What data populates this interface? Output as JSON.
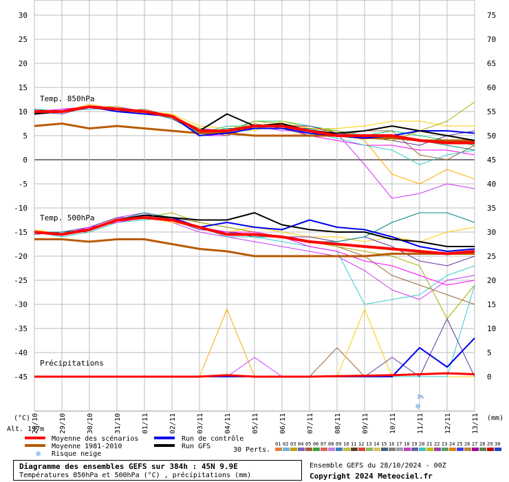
{
  "chart_data": {
    "type": "line",
    "title": "Diagramme des ensembles GEFS sur 384h : 45N 9.9E",
    "subtitle": "Températures 850hPa et 500hPa (°C) , précipitations (mm)",
    "left_axis_unit": "(°C)",
    "right_axis_unit": "(mm)",
    "altitude_label": "Alt. 197m",
    "yticks_left": [
      30,
      25,
      20,
      15,
      10,
      5,
      0,
      -5,
      -10,
      -15,
      -20,
      -25,
      -30,
      -35,
      -40,
      -45
    ],
    "yticks_right": [
      75,
      70,
      65,
      60,
      55,
      50,
      45,
      40,
      35,
      30,
      25,
      20,
      15,
      10,
      5,
      0
    ],
    "x_tick_labels": [
      "28/10",
      "29/10",
      "30/10",
      "31/10",
      "01/11",
      "02/11",
      "03/11",
      "04/11",
      "05/11",
      "06/11",
      "07/11",
      "08/11",
      "09/11",
      "10/11",
      "11/11",
      "12/11",
      "13/11"
    ],
    "panel_labels": {
      "t850": "Temp. 850hPa",
      "t500": "Temp. 500hPa",
      "precip": "Précipitations"
    },
    "x_hours": [
      0,
      24,
      48,
      72,
      96,
      120,
      144,
      168,
      192,
      216,
      240,
      264,
      288,
      312,
      336,
      360,
      384
    ],
    "t850": {
      "mean": [
        10,
        10,
        11,
        10.5,
        10,
        9,
        6,
        6,
        7,
        7,
        6,
        5,
        5,
        5,
        4,
        3.5,
        3.5
      ],
      "climo": [
        7,
        7.5,
        6.5,
        7,
        6.5,
        6,
        5.5,
        5.5,
        5,
        5,
        5,
        5,
        4.5,
        4.5,
        4,
        4,
        4
      ],
      "control": [
        9.5,
        10,
        11,
        10,
        9.5,
        9,
        5,
        5.5,
        6.5,
        6.5,
        5.5,
        5,
        4.5,
        5,
        6,
        6,
        5.5
      ],
      "gfs": [
        9.5,
        10,
        11,
        10.5,
        10,
        9,
        6,
        9.5,
        7,
        7.5,
        6,
        5.5,
        6,
        7,
        6,
        5,
        4
      ],
      "members": [
        [
          10,
          10.5,
          11,
          10,
          10,
          9,
          5,
          5,
          7,
          7,
          5,
          4,
          3,
          3,
          2,
          2,
          1
        ],
        [
          9.5,
          10,
          11,
          11,
          10,
          9,
          6,
          6,
          8,
          8,
          7,
          6,
          5,
          6,
          5,
          4,
          3
        ],
        [
          10,
          10,
          11.5,
          10.5,
          9.5,
          9.5,
          5.5,
          7,
          6.5,
          7.5,
          6.5,
          6,
          4,
          -3,
          -5,
          -2,
          -4
        ],
        [
          10,
          10.5,
          10.5,
          11,
          10,
          8.5,
          6.5,
          6,
          7,
          6,
          6,
          5.5,
          -1,
          -8,
          -7,
          -5,
          -6
        ],
        [
          10.5,
          10,
          11,
          10,
          10.5,
          9,
          6,
          5,
          7.5,
          6.5,
          5,
          5,
          6,
          6,
          1,
          0,
          3
        ],
        [
          9.5,
          10,
          11,
          10.5,
          10,
          9.5,
          7,
          6.5,
          6,
          8,
          6.5,
          6.5,
          7,
          8,
          8,
          7,
          7
        ],
        [
          10,
          10,
          10.5,
          10.5,
          10,
          9,
          5.5,
          7,
          7,
          7,
          5.5,
          4.5,
          3,
          2,
          -1,
          1,
          2
        ],
        [
          10,
          9.5,
          11,
          10,
          10,
          9,
          6,
          6,
          7,
          7,
          7,
          5.5,
          5,
          4,
          3,
          5,
          6
        ],
        [
          10,
          10,
          11,
          11,
          9.5,
          9,
          6.5,
          5.5,
          8,
          7.5,
          6,
          6,
          4.5,
          4,
          6,
          8,
          12
        ],
        [
          10.5,
          10,
          11,
          10.5,
          10,
          8.5,
          5.5,
          6.5,
          6.5,
          6.5,
          6.5,
          5,
          5,
          5,
          4,
          3,
          2
        ]
      ]
    },
    "t500": {
      "mean": [
        -15,
        -15.5,
        -14.5,
        -12.5,
        -12,
        -12.5,
        -14,
        -15.5,
        -15.5,
        -16,
        -17,
        -17.5,
        -18,
        -18.5,
        -19,
        -19.5,
        -19
      ],
      "climo": [
        -16.5,
        -16.5,
        -17,
        -16.5,
        -16.5,
        -17.5,
        -18.5,
        -19,
        -20,
        -20,
        -20,
        -20,
        -20,
        -19.5,
        -19.5,
        -19.5,
        -19.5
      ],
      "control": [
        -15,
        -15.5,
        -14.5,
        -12.5,
        -11.5,
        -12,
        -14,
        -13,
        -14,
        -14.5,
        -12.5,
        -14,
        -14.5,
        -16,
        -18,
        -19,
        -18.5
      ],
      "gfs": [
        -15,
        -15.5,
        -14.5,
        -12.5,
        -11.5,
        -12,
        -12.5,
        -12.5,
        -11,
        -13.5,
        -14.5,
        -15,
        -15,
        -16.5,
        -17,
        -18,
        -18
      ],
      "members": [
        [
          -15,
          -15.5,
          -14,
          -12,
          -11,
          -13,
          -15,
          -16,
          -17,
          -18,
          -19,
          -20,
          -23,
          -27,
          -29,
          -25,
          -24
        ],
        [
          -15,
          -15,
          -15,
          -13,
          -12,
          -12,
          -13,
          -14,
          -15,
          -16,
          -17,
          -18,
          -20,
          -24,
          -26,
          -28,
          -30
        ],
        [
          -14.5,
          -15.5,
          -14.5,
          -12.5,
          -12,
          -13,
          -14,
          -15,
          -14,
          -15,
          -16,
          -16,
          -17,
          -16,
          -17,
          -15,
          -14
        ],
        [
          -15,
          -16,
          -15,
          -13,
          -12.5,
          -12,
          -14,
          -16,
          -16,
          -17,
          -18,
          -19,
          -30,
          -29,
          -28,
          -24,
          -22
        ],
        [
          -15.5,
          -15,
          -14,
          -12,
          -12,
          -12.5,
          -14.5,
          -15,
          -15.5,
          -16,
          -16,
          -17,
          -16,
          -18,
          -21,
          -22,
          -20
        ],
        [
          -15,
          -15.5,
          -14.5,
          -12.5,
          -12,
          -11,
          -13,
          -14,
          -15,
          -16,
          -17,
          -18,
          -19,
          -20,
          -22,
          -33,
          -26
        ],
        [
          -15,
          -15,
          -14.5,
          -12.5,
          -11,
          -12,
          -14,
          -15,
          -16,
          -16,
          -17,
          -17,
          -16,
          -13,
          -11,
          -11,
          -13
        ],
        [
          -15,
          -15.5,
          -14,
          -13,
          -12,
          -12.5,
          -14,
          -15,
          -15,
          -16,
          -18,
          -19,
          -21,
          -22,
          -24,
          -26,
          -25
        ]
      ]
    },
    "precip": {
      "mean": [
        0,
        0,
        0,
        0,
        0,
        0,
        0,
        0.3,
        0,
        0,
        0,
        0.1,
        0.2,
        0.3,
        0.5,
        0.7,
        0.5
      ],
      "control": [
        0,
        0,
        0,
        0,
        0,
        0,
        0,
        0,
        0,
        0,
        0,
        0,
        0,
        0,
        6,
        2,
        8
      ],
      "members": [
        [
          0,
          0,
          0,
          0,
          0,
          0,
          0,
          14,
          0,
          0,
          0,
          0,
          0,
          0,
          0,
          0,
          0
        ],
        [
          0,
          0,
          0,
          0,
          0,
          0,
          0,
          0,
          4,
          0,
          0,
          0,
          0,
          0,
          0,
          0,
          0
        ],
        [
          0,
          0,
          0,
          0,
          0,
          0,
          0,
          0,
          0,
          0,
          0,
          6,
          0,
          0,
          0,
          0,
          0
        ],
        [
          0,
          0,
          0,
          0,
          0,
          0,
          0,
          0,
          0,
          0,
          0,
          0,
          14,
          0,
          0,
          0,
          0
        ],
        [
          0,
          0,
          0,
          0,
          0,
          0,
          0,
          0,
          0,
          0,
          0,
          0,
          0,
          0,
          0,
          0,
          19
        ],
        [
          0,
          0,
          0,
          0,
          0,
          0,
          0,
          0,
          0,
          0,
          0,
          0,
          0,
          4,
          0,
          12,
          0
        ]
      ]
    },
    "snow_risk_label": "3%",
    "snow_risk_hour": 336,
    "ylim_left": [
      -45,
      30
    ],
    "ylim_right": [
      0,
      75
    ],
    "grid": true,
    "colors": {
      "mean": "#ff0000",
      "climo": "#b85a00",
      "control": "#0000ee",
      "gfs": "#000000",
      "snow": "#5aa0e0",
      "members": [
        "#ff00ff",
        "#00cc66",
        "#ffaa00",
        "#cc33ff",
        "#996633",
        "#ffcc00",
        "#33cccc",
        "#663399",
        "#aaaa00",
        "#008888"
      ]
    }
  },
  "legend": {
    "mean": "Moyenne des scénarios",
    "climo": "Moyenne 1981-2010",
    "control": "Run de contrôle",
    "gfs": "Run GFS",
    "snow": "Risque neige",
    "perts_label": "30 Perts.",
    "pert_numbers": [
      "01",
      "02",
      "03",
      "04",
      "05",
      "06",
      "07",
      "08",
      "09",
      "10",
      "11",
      "12",
      "13",
      "14",
      "15",
      "16",
      "17",
      "18",
      "19",
      "20",
      "21",
      "22",
      "23",
      "24",
      "25",
      "26",
      "27",
      "28",
      "29",
      "30"
    ],
    "pert_colors": [
      "#e08040",
      "#70b0e0",
      "#c0a000",
      "#8060c0",
      "#a06030",
      "#40a040",
      "#e06060",
      "#c080e0",
      "#4080c0",
      "#c0c040",
      "#604020",
      "#e04040",
      "#80c060",
      "#e0c060",
      "#406080",
      "#808080",
      "#a0a0a0",
      "#c040c0",
      "#6060a0",
      "#40c0c0",
      "#c0c000",
      "#a040a0",
      "#60a060",
      "#e08000",
      "#4040e0",
      "#c08040",
      "#a000a0",
      "#608040",
      "#c00000",
      "#2040c0"
    ]
  },
  "footer": {
    "title": "Diagramme des ensembles GEFS sur 384h : 45N 9.9E",
    "subtitle": "Températures 850hPa et 500hPa (°C) , précipitations (mm)",
    "run_info": "Ensemble GEFS du 28/10/2024 - 00Z",
    "copyright": "Copyright 2024 Meteociel.fr"
  }
}
